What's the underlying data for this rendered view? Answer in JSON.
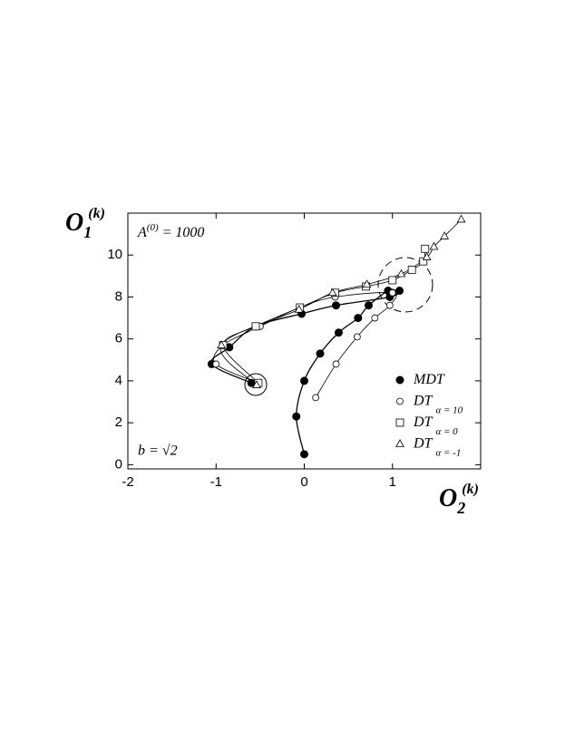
{
  "chart_data": {
    "type": "scatter",
    "x_label": {
      "base": "O",
      "sub": "2",
      "sup": "(k)"
    },
    "y_label": {
      "base": "O",
      "sub": "1",
      "sup": "(k)"
    },
    "annotation_a": {
      "base": "A",
      "sup": "(0)",
      "rest": "= 1000"
    },
    "annotation_b": "b = √2",
    "xlim": [
      -2,
      2
    ],
    "ylim": [
      -0.2,
      12
    ],
    "xticks": [
      -2,
      -1,
      0,
      1
    ],
    "yticks": [
      0,
      2,
      4,
      6,
      8,
      10
    ],
    "series": [
      {
        "name": "MDT",
        "marker": "filled-circle",
        "color": "#000",
        "x": [
          0.0,
          -0.09,
          0.0,
          0.18,
          0.39,
          0.61,
          0.73,
          0.95,
          1.0,
          1.08,
          0.97,
          0.36,
          -0.03,
          -0.55,
          -0.85,
          -1.05,
          -0.6
        ],
        "values": [
          0.5,
          2.3,
          4.0,
          5.3,
          6.3,
          7.0,
          7.6,
          8.3,
          8.2,
          8.3,
          8.0,
          7.6,
          7.2,
          6.6,
          5.6,
          4.8,
          3.9
        ]
      },
      {
        "name": "DT",
        "subscript": "α = 10",
        "marker": "open-circle",
        "color": "#000",
        "x": [
          0.13,
          0.36,
          0.6,
          0.8,
          0.97,
          1.0,
          0.35,
          -0.05,
          -0.5,
          -0.92,
          -1.0,
          -0.52
        ],
        "values": [
          3.2,
          4.8,
          6.1,
          7.0,
          7.6,
          8.2,
          8.0,
          7.5,
          6.6,
          5.7,
          4.8,
          3.9
        ]
      },
      {
        "name": "DT",
        "subscript": "α = 0",
        "marker": "square",
        "color": "#000",
        "x": [
          1.37,
          1.35,
          1.22,
          1.0,
          0.7,
          0.35,
          -0.05,
          -0.55,
          -0.92,
          -0.52
        ],
        "values": [
          10.3,
          9.7,
          9.3,
          8.8,
          8.5,
          8.2,
          7.5,
          6.6,
          5.7,
          3.9
        ]
      },
      {
        "name": "DT",
        "subscript": "α = -1",
        "marker": "triangle",
        "color": "#000",
        "x": [
          1.78,
          1.59,
          1.47,
          1.39,
          1.1,
          0.71,
          0.32,
          -0.06,
          -0.94,
          -0.54
        ],
        "values": [
          11.7,
          10.9,
          10.4,
          9.9,
          9.1,
          8.6,
          8.2,
          7.4,
          5.7,
          3.8
        ]
      }
    ]
  }
}
